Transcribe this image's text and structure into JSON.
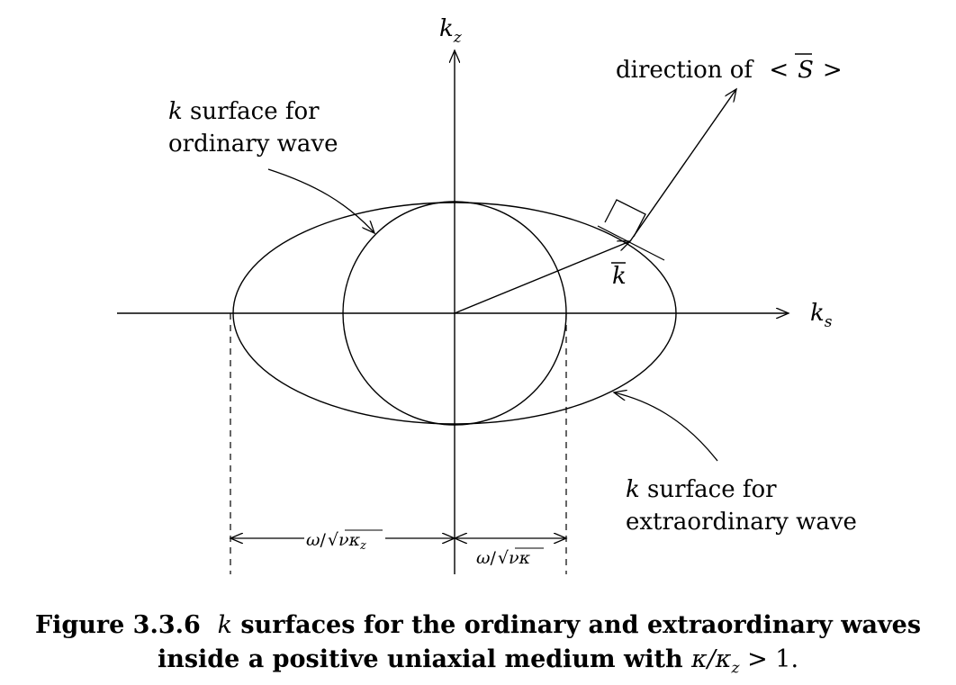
{
  "axes": {
    "vertical_label_main": "k",
    "vertical_label_sub": "z",
    "horizontal_label_main": "k",
    "horizontal_label_sub": "s"
  },
  "annotations": {
    "poynting_prefix": "direction of ",
    "poynting_open": "<",
    "poynting_symbol": "S",
    "poynting_close": ">",
    "wavevector_label": "k",
    "ordinary_line1_var": "k",
    "ordinary_line1_rest": " surface for",
    "ordinary_line2": "ordinary wave",
    "extra_line1_var": "k",
    "extra_line1_rest": " surface for",
    "extra_line2": "extraordinary wave"
  },
  "dimensions": {
    "left_omega": "ω",
    "left_slash": "/",
    "left_radicand": "νκ",
    "left_sub": "z",
    "right_omega": "ω",
    "right_slash": "/",
    "right_radicand": "νκ"
  },
  "caption": {
    "number": "Figure 3.3.6",
    "var": "k",
    "text1": " surfaces for the ordinary and extraordinary waves",
    "text2": "inside a positive uniaxial medium with ",
    "math": "κ/κ",
    "math_sub": "z",
    "math_tail": " > 1."
  }
}
